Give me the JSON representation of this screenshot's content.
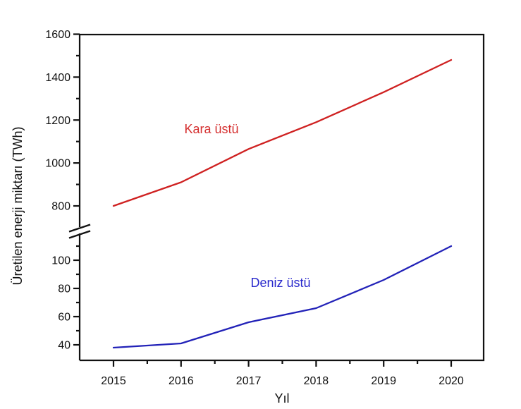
{
  "figure": {
    "background": "#ffffff",
    "axis_color": "#111111"
  },
  "chart_data": {
    "type": "line",
    "title": "",
    "xlabel": "Yıl",
    "ylabel": "Üretilen enerji miktarı (TWh)",
    "x": [
      2015,
      2016,
      2017,
      2018,
      2019,
      2020
    ],
    "x_tick_labels": [
      "2015",
      "2016",
      "2017",
      "2018",
      "2019",
      "2020"
    ],
    "series": [
      {
        "name": "Kara üstü",
        "color": "#cf2121",
        "axis_segment": "upper",
        "values": [
          800,
          910,
          1065,
          1190,
          1330,
          1480
        ]
      },
      {
        "name": "Deniz üstü",
        "color": "#2222b8",
        "axis_segment": "lower",
        "values": [
          38,
          41,
          56,
          66,
          86,
          110
        ]
      }
    ],
    "y_axis": {
      "broken": true,
      "upper_segment": {
        "range": [
          800,
          1600
        ],
        "major_ticks": [
          800,
          1000,
          1200,
          1400,
          1600
        ],
        "minor_ticks": [
          900,
          1100,
          1300,
          1500
        ]
      },
      "lower_segment": {
        "range": [
          29,
          110
        ],
        "major_ticks": [
          40,
          60,
          80,
          100
        ],
        "minor_ticks": [
          50,
          70,
          90,
          110
        ]
      }
    },
    "grid": false,
    "legend": "inline-annotations"
  },
  "annotations": {
    "series_label_upper": "Kara üstü",
    "series_label_lower": "Deniz üstü"
  }
}
